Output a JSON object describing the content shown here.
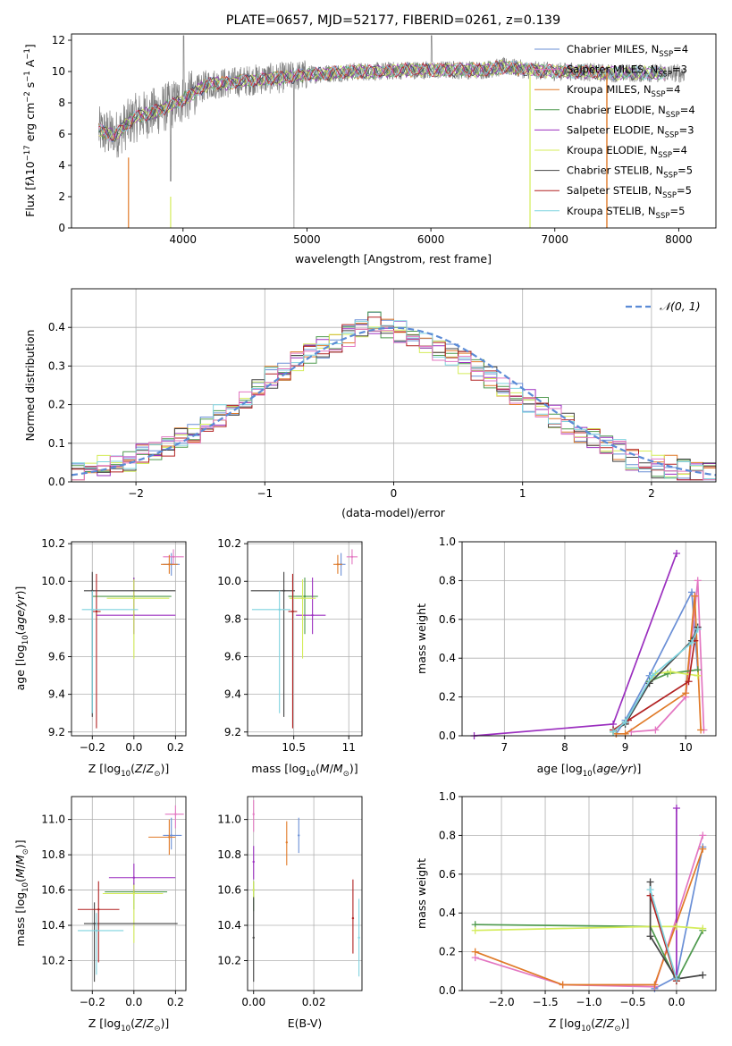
{
  "chart_data": [
    {
      "id": "spectrum",
      "type": "line",
      "title": "PLATE=0657, MJD=52177, FIBERID=0261, z=0.139",
      "xlabel": "wavelength [Angstrom, rest frame]",
      "ylabel": "Flux [fλ10⁻¹⁷ erg cm⁻² s⁻¹ A⁻¹]",
      "xlim": [
        3100,
        8300
      ],
      "ylim": [
        0,
        12.4
      ],
      "xticks": [
        4000,
        5000,
        6000,
        7000,
        8000
      ],
      "yticks": [
        0,
        2,
        4,
        6,
        8,
        10,
        12
      ],
      "grid": false,
      "legend_position": "top-right",
      "data_profile": {
        "x": [
          3320,
          3450,
          3600,
          3800,
          4000,
          4200,
          4400,
          4600,
          4800,
          5000,
          5200,
          5400,
          5600,
          5800,
          6000,
          6200,
          6400,
          6600,
          6800,
          7000,
          7200,
          7400
        ],
        "y": [
          6.2,
          5.9,
          7.0,
          7.5,
          8.2,
          9.2,
          9.3,
          9.5,
          9.6,
          9.8,
          9.9,
          10.0,
          10.0,
          10.1,
          10.1,
          10.1,
          10.1,
          10.3,
          10.1,
          10.0,
          10.0,
          9.9
        ]
      },
      "series": [
        {
          "name": "Chabrier MILES, N_SSP=4",
          "color": "#6a8fd6"
        },
        {
          "name": "Salpeter MILES, N_SSP=3",
          "color": "#e377c2"
        },
        {
          "name": "Kroupa MILES, N_SSP=4",
          "color": "#e07a28"
        },
        {
          "name": "Chabrier ELODIE, N_SSP=4",
          "color": "#4f9a4f"
        },
        {
          "name": "Salpeter ELODIE, N_SSP=3",
          "color": "#9b2fbf"
        },
        {
          "name": "Kroupa ELODIE, N_SSP=4",
          "color": "#d4ec5a"
        },
        {
          "name": "Chabrier STELIB, N_SSP=5",
          "color": "#444444"
        },
        {
          "name": "Salpeter STELIB, N_SSP=5",
          "color": "#b22222"
        },
        {
          "name": "Kroupa STELIB, N_SSP=5",
          "color": "#7fd3df"
        }
      ]
    },
    {
      "id": "residuals",
      "type": "line",
      "xlabel": "(data-model)/error",
      "ylabel": "Normed distribution",
      "xlim": [
        -2.5,
        2.5
      ],
      "ylim": [
        0,
        0.5
      ],
      "xticks": [
        -2,
        -1,
        0,
        1,
        2
      ],
      "xtick_labels": [
        "−2",
        "−1",
        "0",
        "1",
        "2"
      ],
      "yticks": [
        0.0,
        0.1,
        0.2,
        0.3,
        0.4
      ],
      "grid": true,
      "legend_position": "top-right",
      "legend": "𝒩(0, 1)",
      "bin_centers": [
        -2.45,
        -2.35,
        -2.25,
        -2.15,
        -2.05,
        -1.95,
        -1.85,
        -1.75,
        -1.65,
        -1.55,
        -1.45,
        -1.35,
        -1.25,
        -1.15,
        -1.05,
        -0.95,
        -0.85,
        -0.75,
        -0.65,
        -0.55,
        -0.45,
        -0.35,
        -0.25,
        -0.15,
        -0.05,
        0.05,
        0.15,
        0.25,
        0.35,
        0.45,
        0.55,
        0.65,
        0.75,
        0.85,
        0.95,
        1.05,
        1.15,
        1.25,
        1.35,
        1.45,
        1.55,
        1.65,
        1.75,
        1.85,
        1.95,
        2.05,
        2.15,
        2.25,
        2.35,
        2.45
      ],
      "histogram_values": [
        0.02,
        0.03,
        0.04,
        0.05,
        0.05,
        0.07,
        0.08,
        0.09,
        0.11,
        0.13,
        0.15,
        0.17,
        0.19,
        0.22,
        0.25,
        0.27,
        0.29,
        0.31,
        0.33,
        0.35,
        0.36,
        0.38,
        0.4,
        0.41,
        0.4,
        0.39,
        0.38,
        0.36,
        0.34,
        0.33,
        0.31,
        0.29,
        0.27,
        0.25,
        0.23,
        0.21,
        0.19,
        0.17,
        0.15,
        0.13,
        0.11,
        0.09,
        0.08,
        0.06,
        0.05,
        0.04,
        0.04,
        0.03,
        0.02,
        0.02
      ]
    },
    {
      "id": "age-vs-Z",
      "type": "scatter",
      "xlabel": "Z [log10(Z/Z⊙)]",
      "ylabel": "age  [log10(age/yr)]",
      "xlim": [
        -0.3,
        0.25
      ],
      "ylim": [
        9.18,
        10.21
      ],
      "xticks": [
        -0.2,
        0.0,
        0.2
      ],
      "xtick_labels": [
        "−0.2",
        "0.0",
        "0.2"
      ],
      "yticks": [
        9.2,
        9.4,
        9.6,
        9.8,
        10.0,
        10.2
      ],
      "grid": true,
      "points": [
        {
          "series": 0,
          "x": 0.18,
          "y": 10.09,
          "xerr": [
            0.04,
            0.04
          ],
          "yerr": [
            0.06,
            0.06
          ]
        },
        {
          "series": 1,
          "x": 0.19,
          "y": 10.13,
          "xerr": [
            0.05,
            0.05
          ],
          "yerr": [
            0.04,
            0.04
          ]
        },
        {
          "series": 2,
          "x": 0.17,
          "y": 10.09,
          "xerr": [
            0.04,
            0.04
          ],
          "yerr": [
            0.05,
            0.05
          ]
        },
        {
          "series": 3,
          "x": 0.0,
          "y": 9.92,
          "xerr": [
            0.2,
            0.18
          ],
          "yerr": [
            0.2,
            0.1
          ]
        },
        {
          "series": 4,
          "x": 0.0,
          "y": 9.82,
          "xerr": [
            0.18,
            0.2
          ],
          "yerr": [
            0.1,
            0.2
          ]
        },
        {
          "series": 5,
          "x": 0.0,
          "y": 9.91,
          "xerr": [
            0.13,
            0.17
          ],
          "yerr": [
            0.32,
            0.1
          ]
        },
        {
          "series": 6,
          "x": -0.2,
          "y": 9.95,
          "xerr": [
            0.04,
            0.4
          ],
          "yerr": [
            0.67,
            0.1
          ]
        },
        {
          "series": 7,
          "x": -0.18,
          "y": 9.84,
          "xerr": [
            0.02,
            0.02
          ],
          "yerr": [
            0.62,
            0.2
          ]
        },
        {
          "series": 8,
          "x": -0.2,
          "y": 9.85,
          "xerr": [
            0.05,
            0.22
          ],
          "yerr": [
            0.55,
            0.1
          ]
        }
      ]
    },
    {
      "id": "age-vs-mass",
      "type": "scatter",
      "xlabel": "mass [log10(M/M⊙)]",
      "xlim": [
        10.08,
        11.12
      ],
      "ylim": [
        9.18,
        10.21
      ],
      "xticks": [
        10.5,
        11.0
      ],
      "yticks": [
        9.2,
        9.4,
        9.6,
        9.8,
        10.0,
        10.2
      ],
      "grid": true,
      "points": [
        {
          "series": 0,
          "x": 10.93,
          "y": 10.09,
          "xerr": [
            0.04,
            0.04
          ],
          "yerr": [
            0.06,
            0.06
          ]
        },
        {
          "series": 1,
          "x": 11.03,
          "y": 10.13,
          "xerr": [
            0.05,
            0.05
          ],
          "yerr": [
            0.04,
            0.04
          ]
        },
        {
          "series": 2,
          "x": 10.9,
          "y": 10.09,
          "xerr": [
            0.04,
            0.04
          ],
          "yerr": [
            0.05,
            0.05
          ]
        },
        {
          "series": 3,
          "x": 10.6,
          "y": 9.92,
          "xerr": [
            0.15,
            0.12
          ],
          "yerr": [
            0.2,
            0.1
          ]
        },
        {
          "series": 4,
          "x": 10.67,
          "y": 9.82,
          "xerr": [
            0.15,
            0.12
          ],
          "yerr": [
            0.1,
            0.2
          ]
        },
        {
          "series": 5,
          "x": 10.58,
          "y": 9.91,
          "xerr": [
            0.12,
            0.12
          ],
          "yerr": [
            0.32,
            0.1
          ]
        },
        {
          "series": 6,
          "x": 10.41,
          "y": 9.95,
          "xerr": [
            0.3,
            0.1
          ],
          "yerr": [
            0.67,
            0.1
          ]
        },
        {
          "series": 7,
          "x": 10.49,
          "y": 9.84,
          "xerr": [
            0.04,
            0.04
          ],
          "yerr": [
            0.62,
            0.2
          ]
        },
        {
          "series": 8,
          "x": 10.37,
          "y": 9.85,
          "xerr": [
            0.25,
            0.1
          ],
          "yerr": [
            0.55,
            0.1
          ]
        }
      ]
    },
    {
      "id": "weight-vs-age",
      "type": "line",
      "xlabel": "age  [log10(age/yr)]",
      "ylabel": "mass weight",
      "xlim": [
        6.3,
        10.5
      ],
      "ylim": [
        0,
        1
      ],
      "xticks": [
        7,
        8,
        9,
        10
      ],
      "yticks": [
        0.0,
        0.2,
        0.4,
        0.6,
        0.8,
        1.0
      ],
      "grid": true,
      "series_points": [
        {
          "series": 0,
          "x": [
            8.85,
            9.0,
            9.4,
            10.1,
            10.2
          ],
          "y": [
            0.01,
            0.08,
            0.31,
            0.74,
            0.34
          ]
        },
        {
          "series": 1,
          "x": [
            9.1,
            9.5,
            10.0,
            10.2,
            10.3
          ],
          "y": [
            0.02,
            0.03,
            0.2,
            0.8,
            0.03
          ]
        },
        {
          "series": 2,
          "x": [
            8.85,
            9.0,
            10.0,
            10.15,
            10.25
          ],
          "y": [
            0.01,
            0.01,
            0.22,
            0.72,
            0.03
          ]
        },
        {
          "series": 3,
          "x": [
            8.8,
            9.0,
            9.4,
            9.7,
            10.2
          ],
          "y": [
            0.02,
            0.07,
            0.28,
            0.32,
            0.34
          ]
        },
        {
          "series": 4,
          "x": [
            6.5,
            8.8,
            9.85
          ],
          "y": [
            0.0,
            0.06,
            0.94
          ]
        },
        {
          "series": 5,
          "x": [
            8.8,
            9.0,
            9.5,
            9.75,
            10.2
          ],
          "y": [
            0.02,
            0.07,
            0.32,
            0.33,
            0.31
          ]
        },
        {
          "series": 6,
          "x": [
            8.8,
            9.0,
            9.4,
            10.1,
            10.2
          ],
          "y": [
            0.03,
            0.06,
            0.27,
            0.49,
            0.56
          ]
        },
        {
          "series": 7,
          "x": [
            8.8,
            9.05,
            10.05,
            10.15
          ],
          "y": [
            0.03,
            0.08,
            0.28,
            0.49
          ]
        },
        {
          "series": 8,
          "x": [
            8.8,
            9.0,
            9.45,
            10.1,
            10.2
          ],
          "y": [
            0.02,
            0.07,
            0.31,
            0.48,
            0.55
          ]
        }
      ]
    },
    {
      "id": "mass-vs-Z",
      "type": "scatter",
      "xlabel": "Z [log10(Z/Z⊙)]",
      "ylabel": "mass [log10(M/M⊙)]",
      "xlim": [
        -0.3,
        0.25
      ],
      "ylim": [
        10.03,
        11.13
      ],
      "xticks": [
        -0.2,
        0.0,
        0.2
      ],
      "xtick_labels": [
        "−0.2",
        "0.0",
        "0.2"
      ],
      "yticks": [
        10.2,
        10.4,
        10.6,
        10.8,
        11.0
      ],
      "grid": true,
      "points": [
        {
          "series": 0,
          "x": 0.18,
          "y": 10.91,
          "xerr": [
            0.04,
            0.05
          ],
          "yerr": [
            0.08,
            0.1
          ]
        },
        {
          "series": 1,
          "x": 0.2,
          "y": 11.03,
          "xerr": [
            0.05,
            0.04
          ],
          "yerr": [
            0.08,
            0.05
          ]
        },
        {
          "series": 2,
          "x": 0.17,
          "y": 10.9,
          "xerr": [
            0.1,
            0.03
          ],
          "yerr": [
            0.1,
            0.1
          ]
        },
        {
          "series": 3,
          "x": 0.0,
          "y": 10.59,
          "xerr": [
            0.14,
            0.16
          ],
          "yerr": [
            0.1,
            0.05
          ]
        },
        {
          "series": 4,
          "x": 0.0,
          "y": 10.67,
          "xerr": [
            0.12,
            0.2
          ],
          "yerr": [
            0.08,
            0.08
          ]
        },
        {
          "series": 5,
          "x": 0.0,
          "y": 10.58,
          "xerr": [
            0.15,
            0.14
          ],
          "yerr": [
            0.28,
            0.05
          ]
        },
        {
          "series": 6,
          "x": -0.19,
          "y": 10.41,
          "xerr": [
            0.05,
            0.4
          ],
          "yerr": [
            0.33,
            0.12
          ]
        },
        {
          "series": 7,
          "x": -0.17,
          "y": 10.49,
          "xerr": [
            0.1,
            0.1
          ],
          "yerr": [
            0.3,
            0.16
          ]
        },
        {
          "series": 8,
          "x": -0.18,
          "y": 10.37,
          "xerr": [
            0.09,
            0.13
          ],
          "yerr": [
            0.25,
            0.1
          ]
        }
      ]
    },
    {
      "id": "mass-vs-EBV",
      "type": "scatter",
      "xlabel": "E(B-V)",
      "xlim": [
        -0.002,
        0.036
      ],
      "ylim": [
        10.03,
        11.13
      ],
      "xticks": [
        0.0,
        0.02
      ],
      "xtick_labels": [
        "0.00",
        "0.02"
      ],
      "yticks": [
        10.2,
        10.4,
        10.6,
        10.8,
        11.0
      ],
      "grid": true,
      "points": [
        {
          "series": 0,
          "x": 0.015,
          "y": 10.91,
          "yerr": [
            0.1,
            0.1
          ]
        },
        {
          "series": 1,
          "x": 0.0,
          "y": 11.03,
          "yerr": [
            0.1,
            0.08
          ]
        },
        {
          "series": 2,
          "x": 0.011,
          "y": 10.87,
          "yerr": [
            0.13,
            0.12
          ]
        },
        {
          "series": 3,
          "x": 0.0,
          "y": 10.6,
          "yerr": [
            0.12,
            0.05
          ]
        },
        {
          "series": 4,
          "x": 0.0,
          "y": 10.76,
          "yerr": [
            0.1,
            0.09
          ]
        },
        {
          "series": 5,
          "x": 0.0,
          "y": 10.6,
          "yerr": [
            0.05,
            0.05
          ]
        },
        {
          "series": 6,
          "x": 0.0,
          "y": 10.33,
          "yerr": [
            0.25,
            0.23
          ]
        },
        {
          "series": 7,
          "x": 0.033,
          "y": 10.44,
          "yerr": [
            0.2,
            0.22
          ]
        },
        {
          "series": 8,
          "x": 0.035,
          "y": 10.33,
          "yerr": [
            0.22,
            0.22
          ]
        }
      ]
    },
    {
      "id": "weight-vs-Z",
      "type": "line",
      "xlabel": "Z [log10(Z/Z⊙)]",
      "ylabel": "mass weight",
      "xlim": [
        -2.45,
        0.45
      ],
      "ylim": [
        0,
        1
      ],
      "xticks": [
        -2.0,
        -1.5,
        -1.0,
        -0.5,
        0.0
      ],
      "xtick_labels": [
        "−2.0",
        "−1.5",
        "−1.0",
        "−0.5",
        "0.0"
      ],
      "yticks": [
        0.0,
        0.2,
        0.4,
        0.6,
        0.8,
        1.0
      ],
      "grid": true,
      "series_points": [
        {
          "series": 0,
          "x": [
            -0.25,
            0.0,
            0.3
          ],
          "y": [
            0.01,
            0.07,
            0.74
          ]
        },
        {
          "series": 1,
          "x": [
            -2.3,
            -1.3,
            -0.25,
            0.3
          ],
          "y": [
            0.17,
            0.03,
            0.02,
            0.8
          ]
        },
        {
          "series": 2,
          "x": [
            -2.3,
            -1.3,
            -0.25,
            0.3
          ],
          "y": [
            0.2,
            0.03,
            0.03,
            0.73
          ]
        },
        {
          "series": 3,
          "x": [
            -2.3,
            -0.3,
            0.0,
            0.3
          ],
          "y": [
            0.34,
            0.33,
            0.05,
            0.31
          ]
        },
        {
          "series": 4,
          "x": [
            0.0,
            0.0
          ],
          "y": [
            0.06,
            0.94
          ]
        },
        {
          "series": 5,
          "x": [
            -2.3,
            -0.3,
            0.0,
            0.3
          ],
          "y": [
            0.31,
            0.33,
            0.33,
            0.32
          ]
        },
        {
          "series": 6,
          "x": [
            -0.3,
            -0.3,
            0.0,
            0.3
          ],
          "y": [
            0.56,
            0.28,
            0.06,
            0.08
          ]
        },
        {
          "series": 7,
          "x": [
            -0.3,
            0.0
          ],
          "y": [
            0.49,
            0.05
          ]
        },
        {
          "series": 8,
          "x": [
            -0.3,
            0.0
          ],
          "y": [
            0.52,
            0.06
          ]
        }
      ]
    }
  ]
}
